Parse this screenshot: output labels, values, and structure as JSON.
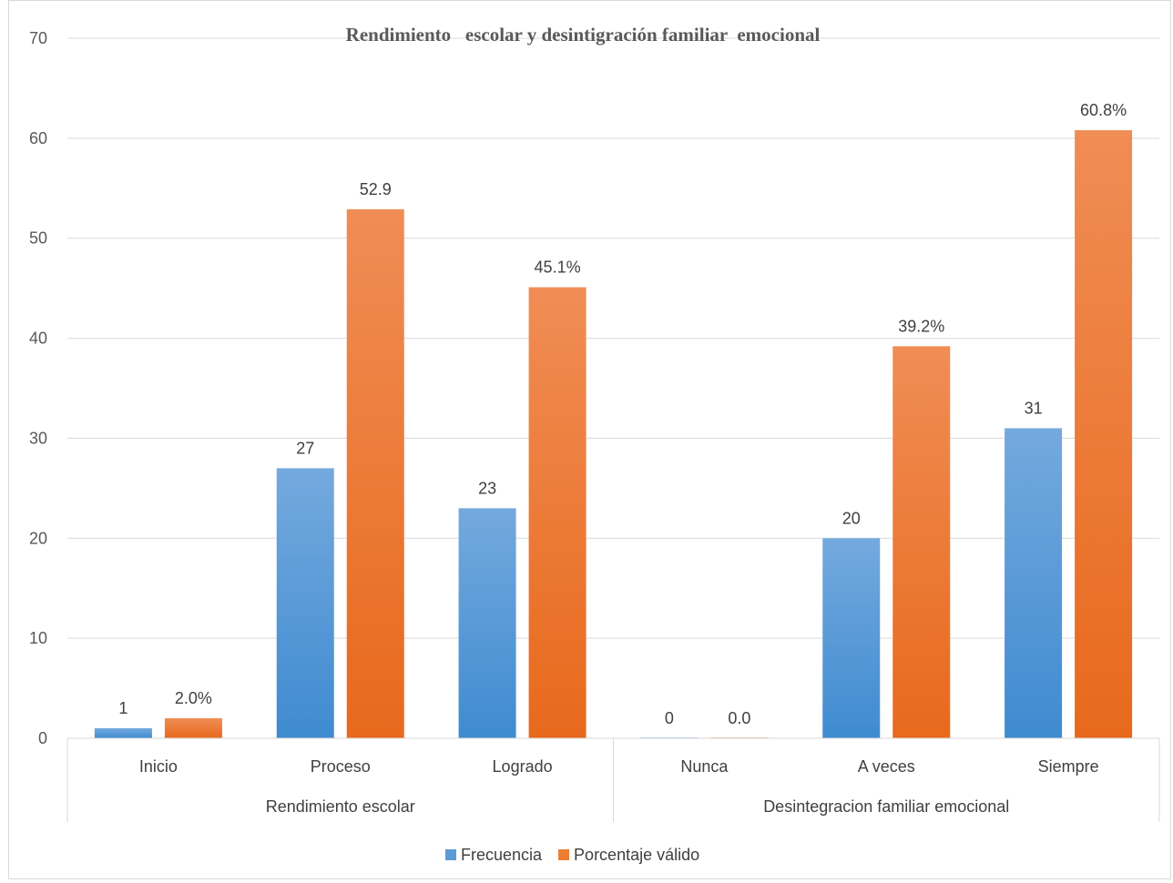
{
  "chart_data": {
    "type": "bar",
    "title": "Rendimiento   escolar y desintigración familiar  emocional",
    "groups": [
      {
        "label": "Rendimiento escolar",
        "categories": [
          "Inicio",
          "Proceso",
          "Logrado"
        ]
      },
      {
        "label": "Desintegracion familiar emocional",
        "categories": [
          "Nunca",
          "A veces",
          "Siempre"
        ]
      }
    ],
    "categories": [
      "Inicio",
      "Proceso",
      "Logrado",
      "Nunca",
      "A veces",
      "Siempre"
    ],
    "series": [
      {
        "name": "Frecuencia",
        "color": "#5b9bd5",
        "values": [
          1,
          27,
          23,
          0,
          20,
          31
        ],
        "labels": [
          "1",
          "27",
          "23",
          "0",
          "20",
          "31"
        ]
      },
      {
        "name": "Porcentaje válido",
        "color": "#ed7d31",
        "values": [
          2.0,
          52.9,
          45.1,
          0.0,
          39.2,
          60.8
        ],
        "labels": [
          "2.0%",
          "52.9",
          "45.1%",
          "0.0",
          "39.2%",
          "60.8%"
        ]
      }
    ],
    "ylim": [
      0,
      70
    ],
    "yticks": [
      0,
      10,
      20,
      30,
      40,
      50,
      60,
      70
    ],
    "grid": true,
    "legend_position": "bottom"
  }
}
